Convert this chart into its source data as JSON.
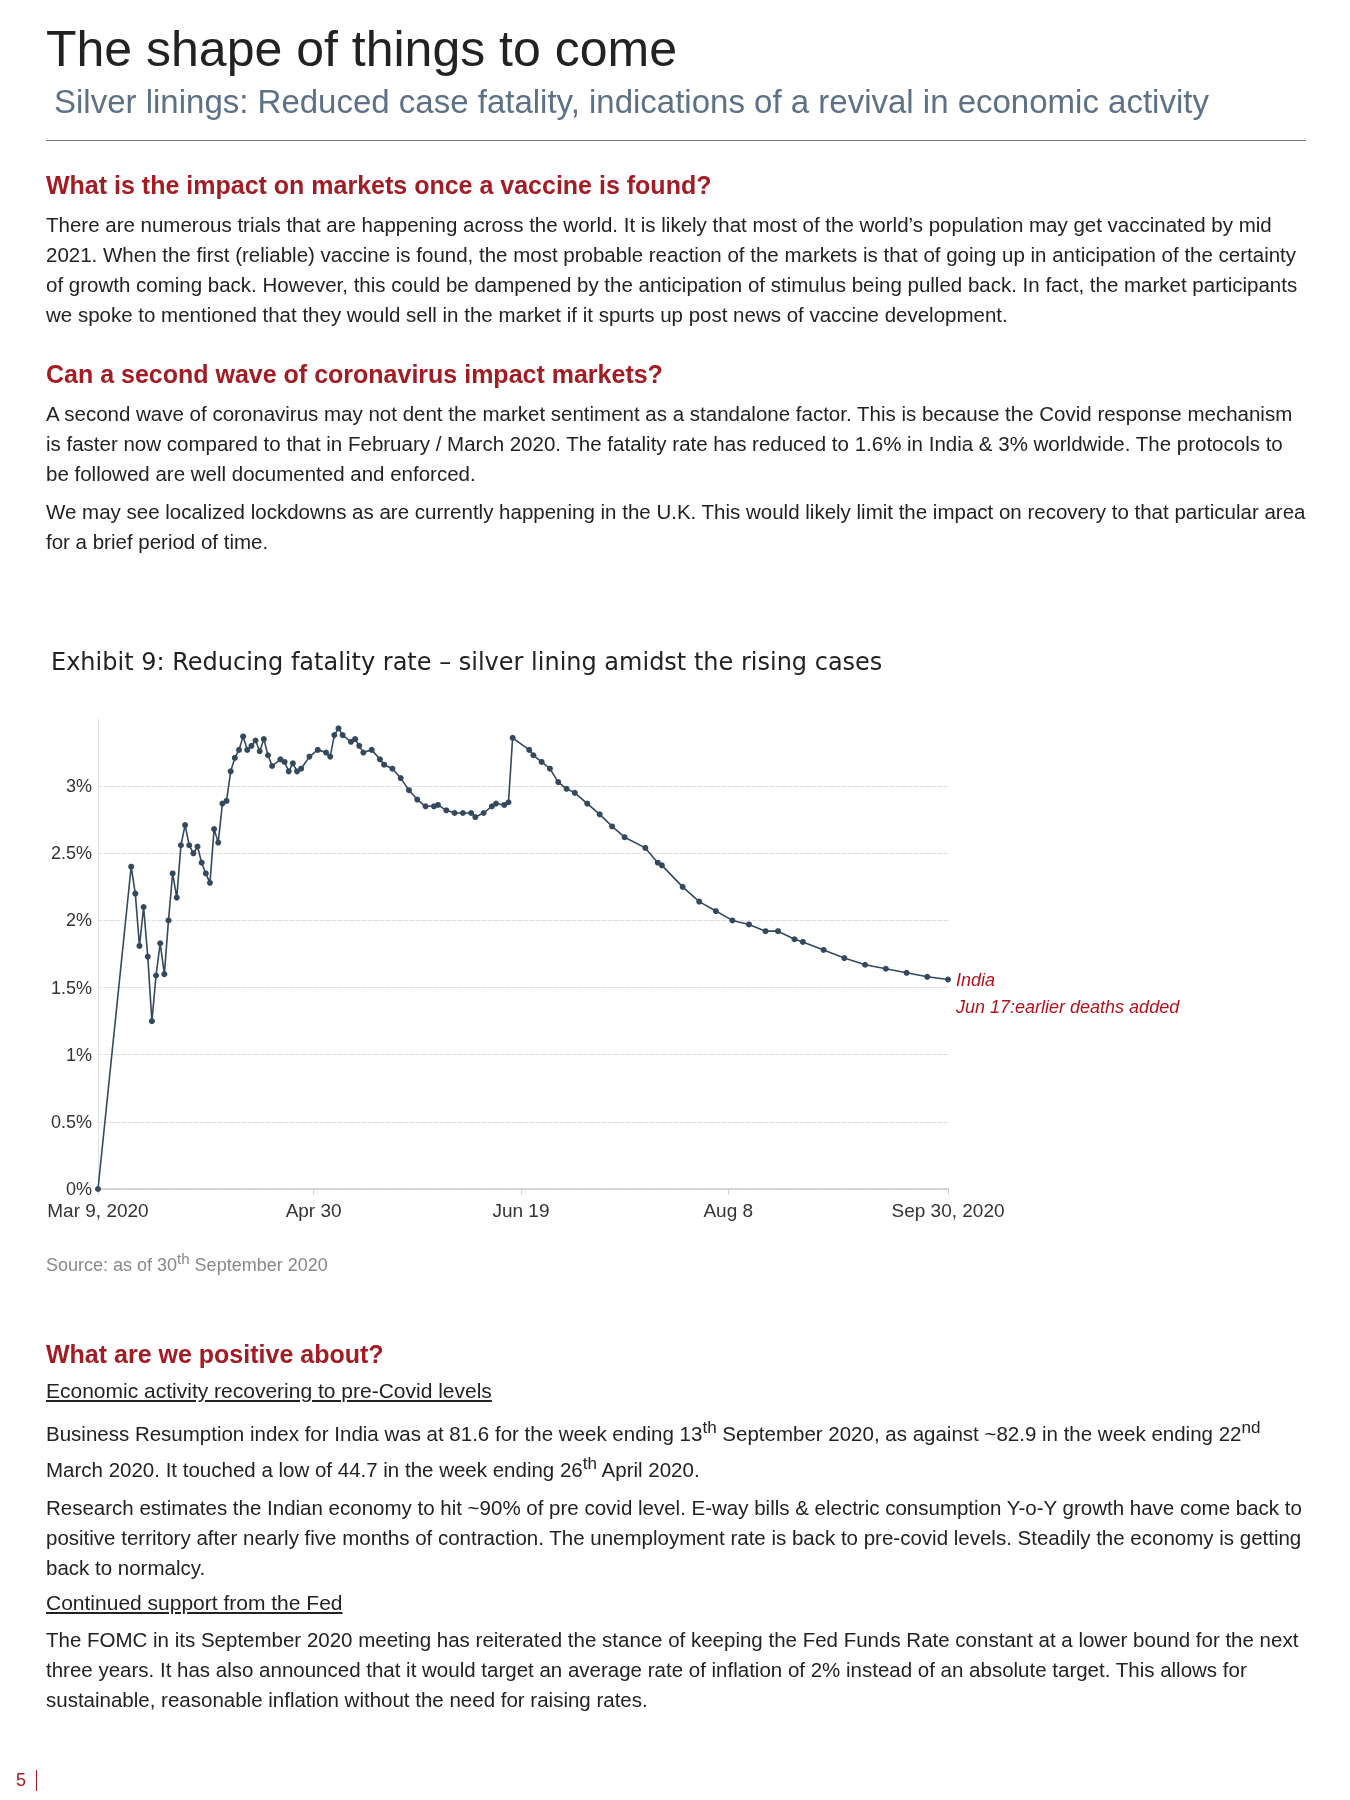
{
  "chart_data": {
    "type": "line",
    "title": "Exhibit 9: Reducing fatality rate – silver lining amidst the rising cases",
    "x": [
      "2020-03-09",
      "2020-03-17",
      "2020-03-18",
      "2020-03-19",
      "2020-03-20",
      "2020-03-21",
      "2020-03-22",
      "2020-03-23",
      "2020-03-24",
      "2020-03-25",
      "2020-03-26",
      "2020-03-27",
      "2020-03-28",
      "2020-03-29",
      "2020-03-30",
      "2020-03-31",
      "2020-04-01",
      "2020-04-02",
      "2020-04-03",
      "2020-04-04",
      "2020-04-05",
      "2020-04-06",
      "2020-04-07",
      "2020-04-08",
      "2020-04-09",
      "2020-04-10",
      "2020-04-11",
      "2020-04-12",
      "2020-04-13",
      "2020-04-14",
      "2020-04-15",
      "2020-04-16",
      "2020-04-17",
      "2020-04-18",
      "2020-04-19",
      "2020-04-20",
      "2020-04-22",
      "2020-04-23",
      "2020-04-24",
      "2020-04-25",
      "2020-04-26",
      "2020-04-27",
      "2020-04-29",
      "2020-05-01",
      "2020-05-03",
      "2020-05-04",
      "2020-05-05",
      "2020-05-06",
      "2020-05-07",
      "2020-05-09",
      "2020-05-10",
      "2020-05-11",
      "2020-05-12",
      "2020-05-14",
      "2020-05-16",
      "2020-05-17",
      "2020-05-19",
      "2020-05-21",
      "2020-05-23",
      "2020-05-25",
      "2020-05-27",
      "2020-05-29",
      "2020-05-30",
      "2020-06-01",
      "2020-06-03",
      "2020-06-05",
      "2020-06-07",
      "2020-06-08",
      "2020-06-10",
      "2020-06-12",
      "2020-06-13",
      "2020-06-15",
      "2020-06-16",
      "2020-06-17",
      "2020-06-21",
      "2020-06-22",
      "2020-06-24",
      "2020-06-26",
      "2020-06-28",
      "2020-06-30",
      "2020-07-02",
      "2020-07-05",
      "2020-07-08",
      "2020-07-11",
      "2020-07-14",
      "2020-07-19",
      "2020-07-22",
      "2020-07-23",
      "2020-07-28",
      "2020-08-01",
      "2020-08-05",
      "2020-08-09",
      "2020-08-13",
      "2020-08-17",
      "2020-08-20",
      "2020-08-24",
      "2020-08-26",
      "2020-08-31",
      "2020-09-05",
      "2020-09-10",
      "2020-09-15",
      "2020-09-20",
      "2020-09-25",
      "2020-09-30"
    ],
    "series": [
      {
        "name": "India",
        "color": "#34495e",
        "values": [
          0,
          2.4,
          2.2,
          1.81,
          2.1,
          1.73,
          1.25,
          1.59,
          1.83,
          1.6,
          2.0,
          2.35,
          2.17,
          2.56,
          2.71,
          2.56,
          2.5,
          2.55,
          2.43,
          2.35,
          2.28,
          2.68,
          2.58,
          2.87,
          2.89,
          3.11,
          3.21,
          3.27,
          3.37,
          3.27,
          3.3,
          3.34,
          3.26,
          3.35,
          3.23,
          3.15,
          3.2,
          3.18,
          3.11,
          3.17,
          3.11,
          3.13,
          3.22,
          3.27,
          3.25,
          3.22,
          3.38,
          3.43,
          3.38,
          3.33,
          3.35,
          3.3,
          3.25,
          3.27,
          3.2,
          3.16,
          3.13,
          3.06,
          2.97,
          2.9,
          2.85,
          2.85,
          2.86,
          2.82,
          2.8,
          2.8,
          2.8,
          2.77,
          2.8,
          2.85,
          2.87,
          2.86,
          2.88,
          3.36,
          3.27,
          3.23,
          3.18,
          3.13,
          3.03,
          2.98,
          2.95,
          2.87,
          2.79,
          2.7,
          2.62,
          2.54,
          2.43,
          2.41,
          2.25,
          2.14,
          2.07,
          2.0,
          1.97,
          1.92,
          1.92,
          1.86,
          1.84,
          1.78,
          1.72,
          1.67,
          1.64,
          1.61,
          1.58,
          1.56
        ]
      }
    ],
    "xlim": [
      "2020-03-09",
      "2020-09-30"
    ],
    "xticks": [
      {
        "value": "2020-03-09",
        "label": "Mar 9, 2020"
      },
      {
        "value": "2020-04-30",
        "label": "Apr 30"
      },
      {
        "value": "2020-06-19",
        "label": "Jun 19"
      },
      {
        "value": "2020-08-08",
        "label": "Aug 8"
      },
      {
        "value": "2020-09-30",
        "label": "Sep 30, 2020"
      }
    ],
    "ylim": [
      0,
      3.5
    ],
    "yticks": [
      {
        "value": 0,
        "label": "0%"
      },
      {
        "value": 0.5,
        "label": "0.5%"
      },
      {
        "value": 1,
        "label": "1%"
      },
      {
        "value": 1.5,
        "label": "1.5%"
      },
      {
        "value": 2,
        "label": "2%"
      },
      {
        "value": 2.5,
        "label": "2.5%"
      },
      {
        "value": 3,
        "label": "3%"
      }
    ],
    "grid": "y",
    "marker": "circle",
    "line_style": "solid",
    "legend": false,
    "annotations": [
      "Jun 17:earlier deaths added",
      "Source: as of 30$^{th}$ September 2020",
      "The shape of things to come",
      "Silver linings: Reduced case fatality, indications of a revival in economic activity",
      "What is the impact on markets once a vaccine is found?",
      "There are numerous trials that are happening across the world. It is likely that most of the world’s population may get vaccinated by mid 2021. When the first (reliable) vaccine is found, the most probable reaction of the markets is that of going up in anticipation of the certainty of growth coming back. However, this could be dampened by the anticipation of stimulus being pulled back. In fact, the market participants we spoke to mentioned that they would sell in the market if it spurts up post news of vaccine development.",
      "Can a second wave of coronavirus impact markets?",
      "A second wave of coronavirus may not dent the market sentiment as a standalone factor. This is because the Covid response mechanism is faster now compared to that in February / March 2020. The fatality rate has reduced to 1.6% in India & 3% worldwide. The protocols to be followed are well documented and enforced.",
      "We may see localized lockdowns as are currently happening in the U.K. This would likely limit the impact on recovery to that particular area for a brief period of time.",
      "What are we positive about?",
      "Economic activity recovering to pre-Covid levels",
      "Business Resumption index for India was at 81.6 for the week ending 13$^{th}$ September 2020, as against ~82.9 in the week ending 22$^{nd}$ March 2020. It touched a low of 44.7 in the week ending 26$^{th}$ April 2020.",
      "Research estimates the Indian economy to hit ~90% of pre covid level. E-way bills & electric consumption Y-o-Y growth have come back to positive territory after nearly five months of contraction. The unemployment rate is back to pre-covid levels. Steadily the economy is getting back to normalcy.",
      "Continued support from the Fed",
      "The FOMC in its September 2020 meeting has reiterated the stance of keeping the Fed Funds Rate constant at a lower bound for the next three years. It has also announced that it would target an average rate of inflation of 2% instead of an absolute target. This allows for sustainable, reasonable inflation without the need for raising rates.",
      "5"
    ]
  }
}
